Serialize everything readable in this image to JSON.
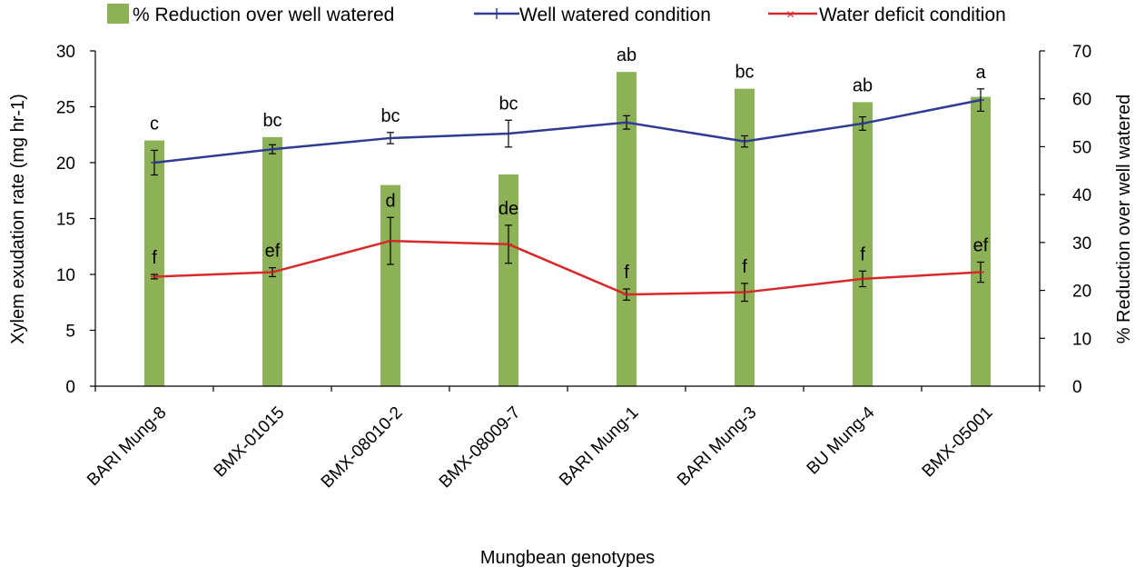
{
  "chart_data": {
    "type": "bar",
    "categories": [
      "BARI Mung-8",
      "BMX-01015",
      "BMX-08010-2",
      "BMX-08009-7",
      "BARI Mung-1",
      "BARI Mung-3",
      "BU Mung-4",
      "BMX-05001"
    ],
    "xlabel": "Mungbean genotypes",
    "ylabel": "Xylem exudation rate (mg hr-1)",
    "y2label": "% Reduction over well watered",
    "ylim": [
      0,
      30
    ],
    "y2lim": [
      0,
      70
    ],
    "yticks": [
      0,
      5,
      10,
      15,
      20,
      25,
      30
    ],
    "y2ticks": [
      0,
      10,
      20,
      30,
      40,
      50,
      60,
      70
    ],
    "legend": [
      "% Reduction over well watered",
      "Well watered condition",
      "Water deficit condition"
    ],
    "colors": {
      "bar": "#8CB156",
      "well": "#2E3C96",
      "deficit": "#D8282A"
    },
    "series": [
      {
        "name": "% Reduction over well watered",
        "type": "bar",
        "axis": "right",
        "values": [
          51.3,
          52,
          42,
          44.2,
          65.6,
          62.1,
          59.3,
          60.4
        ]
      },
      {
        "name": "Well watered condition",
        "type": "line",
        "axis": "left",
        "values": [
          20.0,
          21.2,
          22.2,
          22.6,
          23.6,
          21.9,
          23.5,
          25.6
        ],
        "errors": [
          1.1,
          0.4,
          0.5,
          1.2,
          0.6,
          0.5,
          0.6,
          1.0
        ],
        "letters": [
          "c",
          "bc",
          "bc",
          "bc",
          "ab",
          "bc",
          "ab",
          "a"
        ]
      },
      {
        "name": "Water deficit condition",
        "type": "line",
        "axis": "left",
        "values": [
          9.8,
          10.2,
          13.0,
          12.7,
          8.2,
          8.4,
          9.6,
          10.2
        ],
        "errors": [
          0.2,
          0.4,
          2.1,
          1.7,
          0.5,
          0.8,
          0.7,
          0.9
        ],
        "letters": [
          "f",
          "ef",
          "d",
          "de",
          "f",
          "f",
          "f",
          "ef"
        ]
      }
    ]
  }
}
